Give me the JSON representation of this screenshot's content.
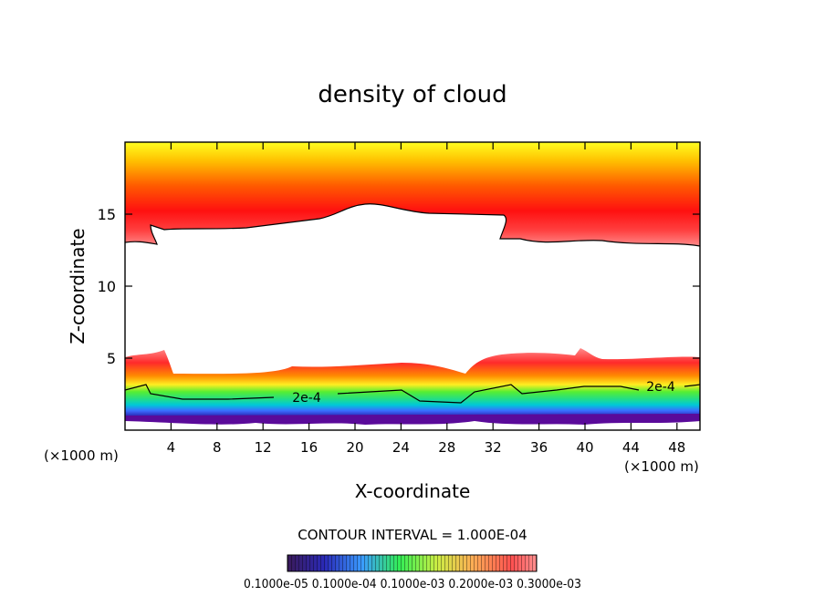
{
  "chart_data": {
    "type": "heatmap",
    "title": "density of cloud",
    "xlabel": "X-coordinate",
    "ylabel": "Z-coordinate",
    "x_unit_left": "(×1000 m)",
    "x_unit_right": "(×1000 m)",
    "xlim": [
      0,
      50
    ],
    "ylim": [
      0,
      20
    ],
    "xticks": [
      4,
      8,
      12,
      16,
      20,
      24,
      28,
      32,
      36,
      40,
      44,
      48
    ],
    "xtick_labels": [
      "4",
      "8",
      "12",
      "16",
      "20",
      "24",
      "28",
      "32",
      "36",
      "40",
      "44",
      "48"
    ],
    "yticks": [
      5,
      10,
      15
    ],
    "ytick_labels": [
      "5",
      "10",
      "15"
    ],
    "contour_interval_text": "CONTOUR INTERVAL = 1.000E-04",
    "contour_labels": [
      "2e-4",
      "2e-4"
    ],
    "colorbar_labels_text": "0.1000e-05 0.1000e-04 0.1000e-03 0.2000e-03 0.3000e-03",
    "colors": {
      "frame": "#000000",
      "top_band": [
        "#ff1010",
        "#ff4a10",
        "#ff8a10",
        "#ffd200",
        "#ffff00"
      ],
      "low_band": [
        "#ff7070",
        "#ff2020",
        "#ff9900",
        "#ffff33",
        "#33ee33",
        "#00cccc",
        "#3366ff",
        "#2222bb",
        "#660099"
      ]
    }
  }
}
